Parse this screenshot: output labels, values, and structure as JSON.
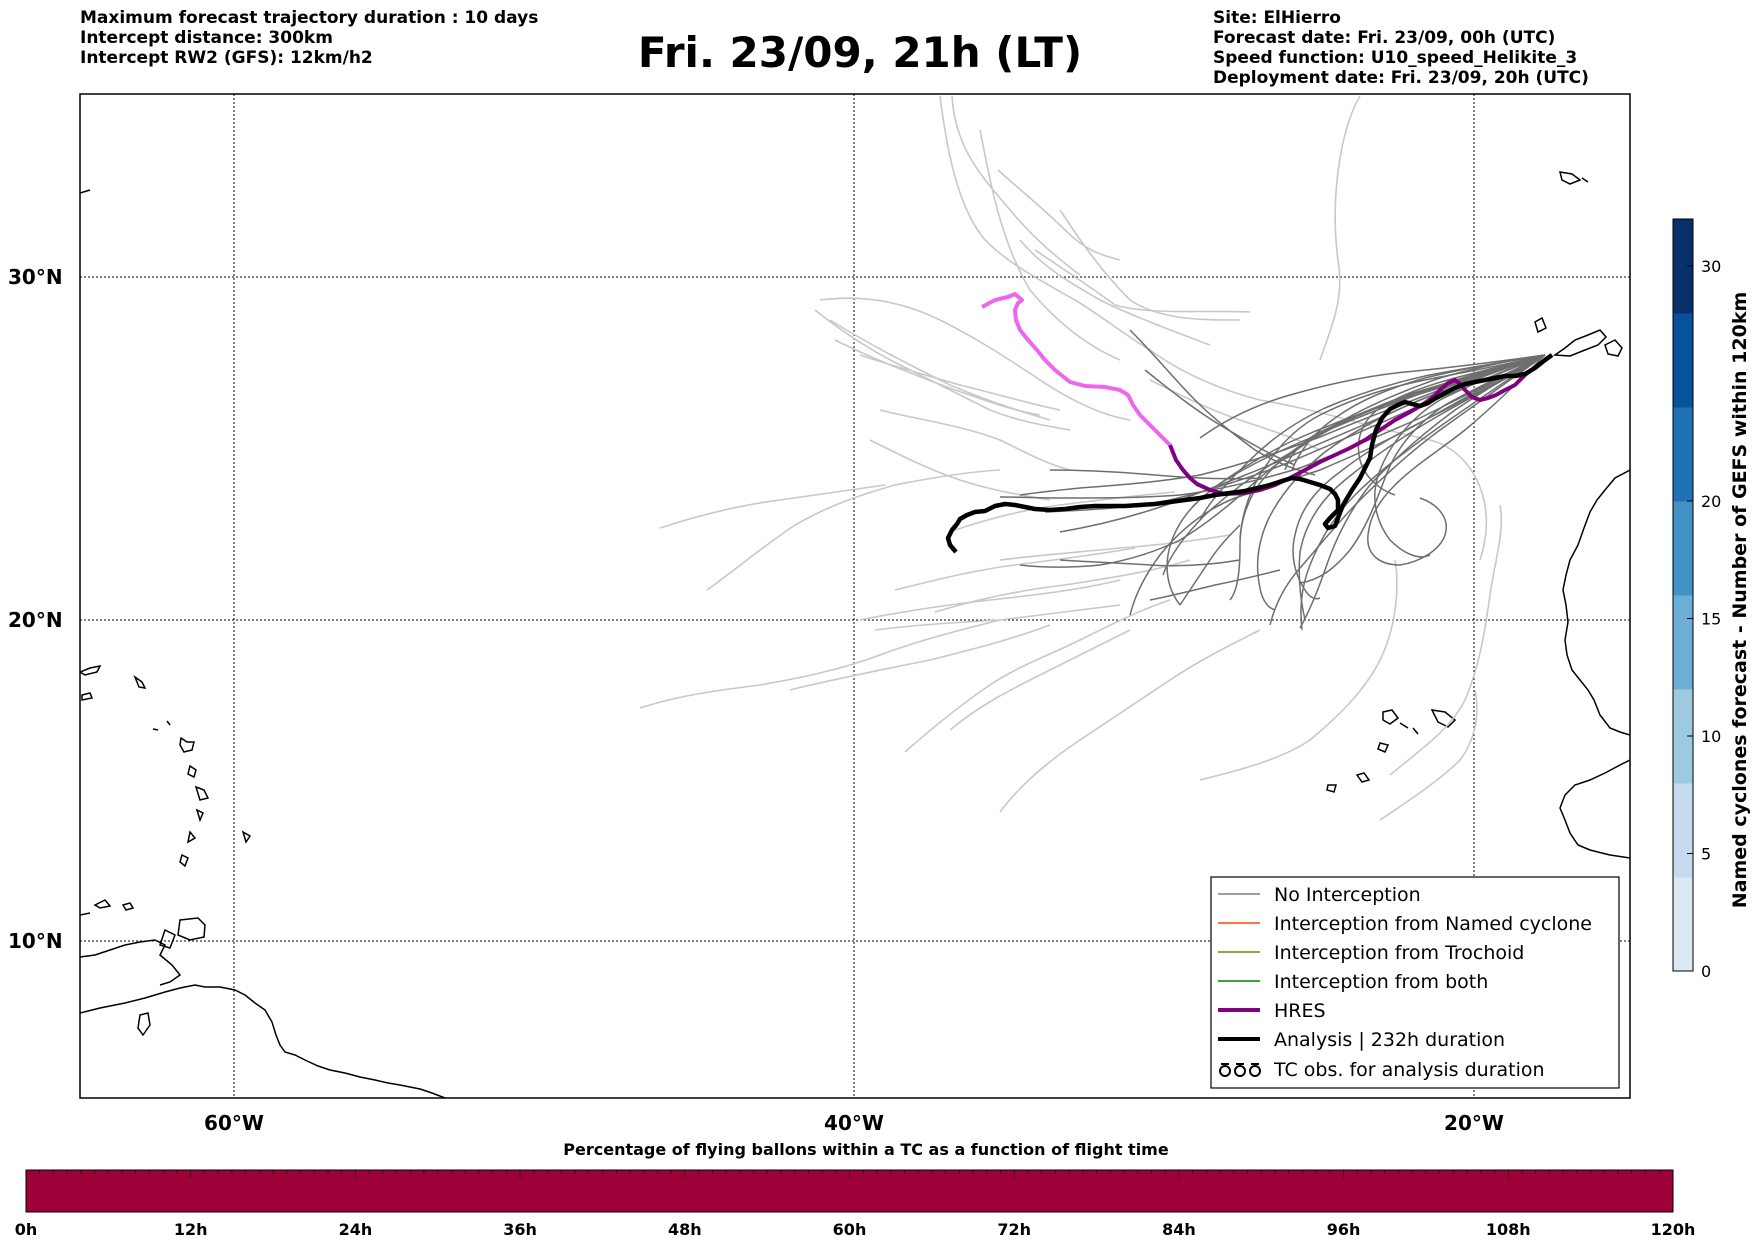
{
  "header": {
    "left_lines": [
      "Maximum forecast trajectory duration : 10 days",
      "Intercept distance: 300km",
      "Intercept RW2 (GFS):  12km/h2"
    ],
    "title": "Fri. 23/09, 21h (LT)",
    "right_lines": [
      "Site: ElHierro",
      "Forecast date: Fri. 23/09, 00h (UTC)",
      "Speed function: U10_speed_Helikite_3",
      "Deployment date: Fri. 23/09, 20h (UTC)"
    ]
  },
  "map": {
    "lat_labels": [
      "30°N",
      "20°N",
      "10°N"
    ],
    "lon_labels": [
      "60°W",
      "40°W",
      "20°W"
    ]
  },
  "legend": {
    "items": [
      {
        "label": "No Interception",
        "color": "#808080",
        "style": "thin"
      },
      {
        "label": "Interception from Named cyclone",
        "color": "#ff4500",
        "style": "thin"
      },
      {
        "label": "Interception from Trochoid",
        "color": "#808000",
        "style": "thin"
      },
      {
        "label": "Interception from both",
        "color": "#008000",
        "style": "thin"
      },
      {
        "label": "HRES",
        "color": "#800080",
        "style": "thick"
      },
      {
        "label": "Analysis | 232h duration",
        "color": "#000000",
        "style": "thick"
      },
      {
        "label": "TC obs. for analysis duration",
        "color": "#000000",
        "style": "symbol"
      }
    ]
  },
  "colorbar": {
    "title": "Named cyclones forecast - Number of GEFS within 120km",
    "ticks": [
      "0",
      "5",
      "10",
      "15",
      "20",
      "30"
    ],
    "colors": [
      "#dbe8f6",
      "#c6dbef",
      "#9ecae1",
      "#6baed6",
      "#4292c6",
      "#2171b5",
      "#08519c",
      "#08306b"
    ]
  },
  "bottom_bar": {
    "title": "Percentage of flying ballons within a TC as a function of flight time",
    "ticks": [
      "0h",
      "12h",
      "24h",
      "36h",
      "48h",
      "60h",
      "72h",
      "84h",
      "96h",
      "108h",
      "120h"
    ],
    "fill_color": "#9e003a",
    "value_percent": 100
  },
  "colors": {
    "hres": "#800080",
    "hres_early": "#ee66ee",
    "analysis": "#000000",
    "no_interception": "#6e6e6e",
    "faded": "#c8c8c8"
  }
}
